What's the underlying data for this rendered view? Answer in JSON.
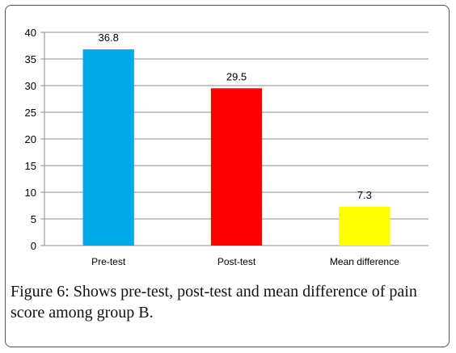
{
  "chart_data": {
    "type": "bar",
    "categories": [
      "Pre-test",
      "Post-test",
      "Mean difference"
    ],
    "values": [
      36.8,
      29.5,
      7.3
    ],
    "data_labels": [
      "36.8",
      "29.5",
      "7.3"
    ],
    "colors": [
      "#00a9e8",
      "#ff0000",
      "#ffff00"
    ],
    "ylim": [
      0,
      40
    ],
    "yticks": [
      0,
      5,
      10,
      15,
      20,
      25,
      30,
      35,
      40
    ],
    "grid": true,
    "title": "",
    "xlabel": "",
    "ylabel": ""
  },
  "caption": {
    "label": "Figure 6:",
    "text": " Shows pre-test, post-test and mean difference of pain score among group B."
  }
}
